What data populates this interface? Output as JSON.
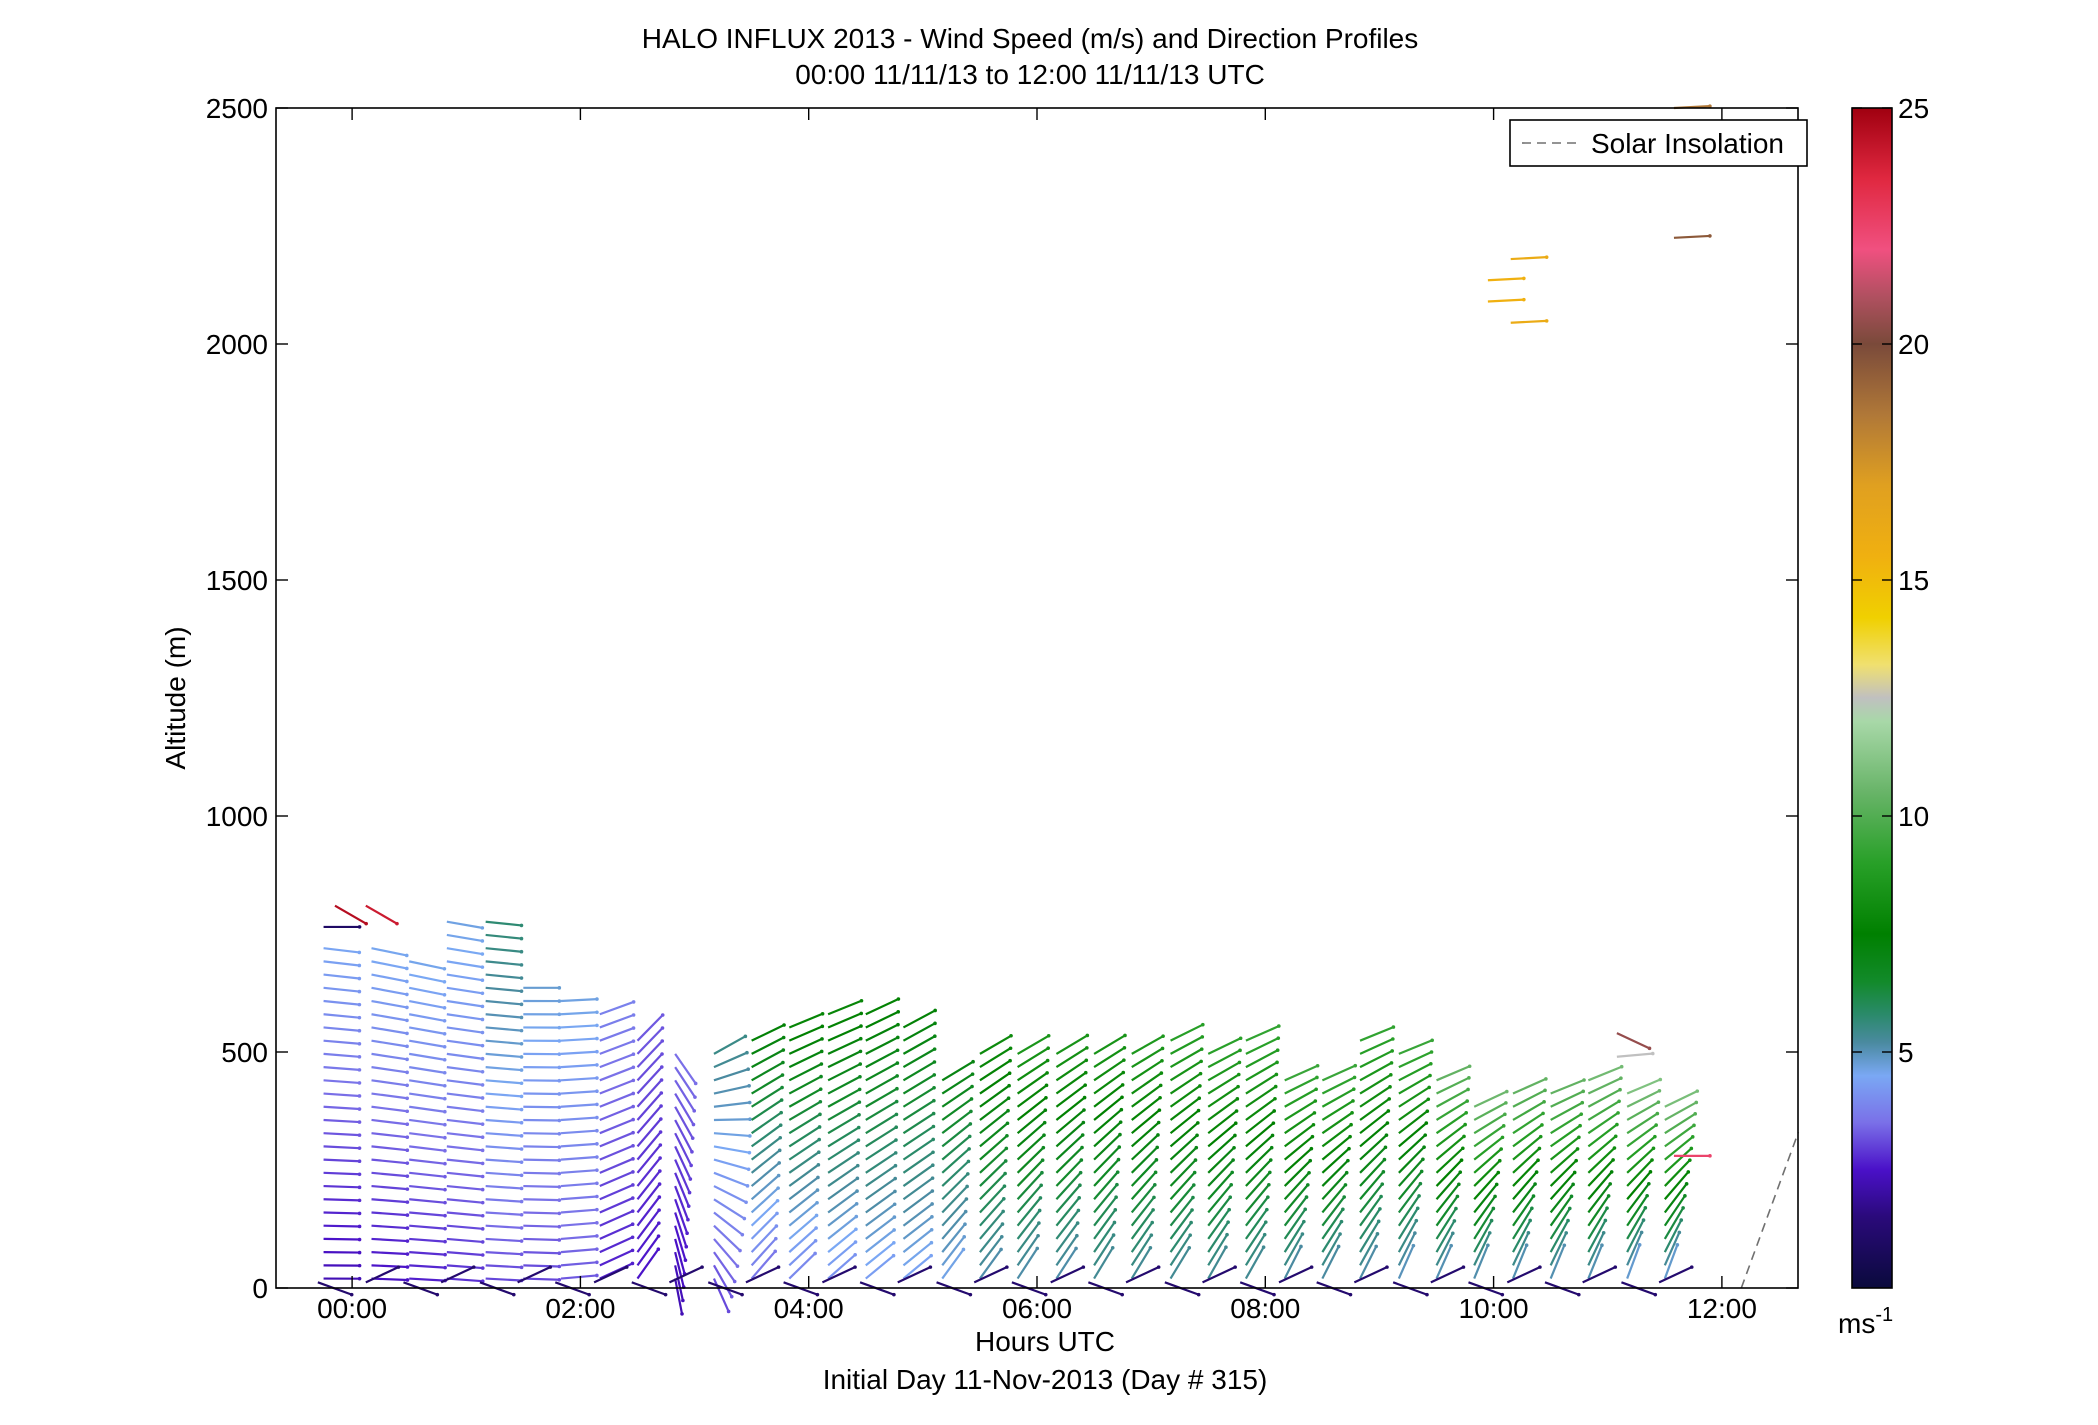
{
  "chart_data": {
    "type": "wind-barb-profile",
    "title": "HALO INFLUX 2013 - Wind Speed (m/s) and Direction Profiles",
    "subtitle": "00:00 11/11/13 to 12:00 11/11/13  UTC",
    "xlabel": "Hours UTC",
    "xlabel_sub": "Initial Day 11-Nov-2013 (Day # 315)",
    "ylabel": "Altitude (m)",
    "xlim": [
      -0.6667,
      12.6667
    ],
    "ylim": [
      0,
      2500
    ],
    "x_ticks": [
      {
        "value": 0,
        "label": "00:00"
      },
      {
        "value": 2,
        "label": "02:00"
      },
      {
        "value": 4,
        "label": "04:00"
      },
      {
        "value": 6,
        "label": "06:00"
      },
      {
        "value": 8,
        "label": "08:00"
      },
      {
        "value": 10,
        "label": "10:00"
      },
      {
        "value": 12,
        "label": "12:00"
      }
    ],
    "y_ticks": [
      {
        "value": 0,
        "label": "0"
      },
      {
        "value": 500,
        "label": "500"
      },
      {
        "value": 1000,
        "label": "1000"
      },
      {
        "value": 1500,
        "label": "1500"
      },
      {
        "value": 2000,
        "label": "2000"
      },
      {
        "value": 2500,
        "label": "2500"
      }
    ],
    "legend": {
      "label": "Solar Insolation",
      "placement": "top-right"
    },
    "solar_insolation": {
      "x": [
        12.17,
        12.67
      ],
      "y": [
        0,
        330
      ]
    },
    "colorbar": {
      "range": [
        0,
        25
      ],
      "ticks": [
        {
          "value": 5,
          "label": "5"
        },
        {
          "value": 10,
          "label": "10"
        },
        {
          "value": 15,
          "label": "15"
        },
        {
          "value": 20,
          "label": "20"
        },
        {
          "value": 25,
          "label": "25"
        }
      ],
      "unit_label": "ms",
      "unit_exp": "-1",
      "stops": [
        [
          0,
          "#0a0a3c"
        ],
        [
          1.5,
          "#2a0a7a"
        ],
        [
          2.5,
          "#4a10c8"
        ],
        [
          3.5,
          "#7a70e8"
        ],
        [
          4.5,
          "#7aa8f4"
        ],
        [
          5.2,
          "#4a8aa0"
        ],
        [
          5.8,
          "#2a8a6a"
        ],
        [
          6.5,
          "#128a2a"
        ],
        [
          7.5,
          "#008000"
        ],
        [
          9.0,
          "#28a028"
        ],
        [
          10.5,
          "#68b468"
        ],
        [
          12.0,
          "#a8d8a8"
        ],
        [
          12.5,
          "#c0c0c0"
        ],
        [
          13.2,
          "#f0e070"
        ],
        [
          14.2,
          "#f0d000"
        ],
        [
          15.5,
          "#f0b010"
        ],
        [
          17.0,
          "#e0a020"
        ],
        [
          18.5,
          "#b07838"
        ],
        [
          20.0,
          "#7a4a3a"
        ],
        [
          21.0,
          "#b05060"
        ],
        [
          22.0,
          "#f05080"
        ],
        [
          23.5,
          "#e02840"
        ],
        [
          25.0,
          "#a00010"
        ]
      ]
    },
    "arrows": {
      "columns": [
        {
          "t": -0.25,
          "speed_lo": 2.2,
          "speed_hi": 4.5,
          "dir_lo": 0,
          "dir_hi": -7,
          "top": 740
        },
        {
          "t": 0.17,
          "speed_lo": 2.4,
          "speed_hi": 4.6,
          "dir_lo": -2,
          "dir_hi": -12,
          "top": 740
        },
        {
          "t": 0.5,
          "speed_lo": 2.6,
          "speed_hi": 4.6,
          "dir_lo": -3,
          "dir_hi": -12,
          "top": 700
        },
        {
          "t": 0.83,
          "speed_lo": 2.8,
          "speed_hi": 4.7,
          "dir_lo": -4,
          "dir_hi": -10,
          "top": 800
        },
        {
          "t": 1.17,
          "speed_lo": 3.0,
          "speed_hi": 5.8,
          "dir_lo": -3,
          "dir_hi": -6,
          "top": 800
        },
        {
          "t": 1.5,
          "speed_lo": 3.0,
          "speed_hi": 4.8,
          "dir_lo": -2,
          "dir_hi": 0,
          "top": 640
        },
        {
          "t": 1.83,
          "speed_lo": 3.2,
          "speed_hi": 4.7,
          "dir_lo": 5,
          "dir_hi": 3,
          "top": 630
        },
        {
          "t": 2.17,
          "speed_lo": 2.6,
          "speed_hi": 3.8,
          "dir_lo": 25,
          "dir_hi": 20,
          "top": 580
        },
        {
          "t": 2.5,
          "speed_lo": 2.5,
          "speed_hi": 3.3,
          "dir_lo": 55,
          "dir_hi": 45,
          "top": 550
        },
        {
          "t": 2.83,
          "speed_lo": 2.2,
          "speed_hi": 3.5,
          "dir_lo": -80,
          "dir_hi": -55,
          "top": 500
        },
        {
          "t": 3.17,
          "speed_lo": 3.0,
          "speed_hi": 5.5,
          "dir_lo": -70,
          "dir_hi": 30,
          "top": 500
        },
        {
          "t": 3.5,
          "speed_lo": 3.5,
          "speed_hi": 7.5,
          "dir_lo": 50,
          "dir_hi": 25,
          "top": 540
        },
        {
          "t": 3.83,
          "speed_lo": 3.8,
          "speed_hi": 7.8,
          "dir_lo": 45,
          "dir_hi": 22,
          "top": 560
        },
        {
          "t": 4.17,
          "speed_lo": 4.0,
          "speed_hi": 7.8,
          "dir_lo": 42,
          "dir_hi": 22,
          "top": 580
        },
        {
          "t": 4.5,
          "speed_lo": 4.2,
          "speed_hi": 7.6,
          "dir_lo": 40,
          "dir_hi": 25,
          "top": 580
        },
        {
          "t": 4.83,
          "speed_lo": 4.3,
          "speed_hi": 7.4,
          "dir_lo": 40,
          "dir_hi": 28,
          "top": 560
        },
        {
          "t": 5.17,
          "speed_lo": 4.5,
          "speed_hi": 7.2,
          "dir_lo": 55,
          "dir_hi": 30,
          "top": 460
        },
        {
          "t": 5.5,
          "speed_lo": 5.0,
          "speed_hi": 8.0,
          "dir_lo": 55,
          "dir_hi": 30,
          "top": 500
        },
        {
          "t": 5.83,
          "speed_lo": 5.0,
          "speed_hi": 8.5,
          "dir_lo": 58,
          "dir_hi": 30,
          "top": 500
        },
        {
          "t": 6.17,
          "speed_lo": 5.0,
          "speed_hi": 8.5,
          "dir_lo": 58,
          "dir_hi": 30,
          "top": 510
        },
        {
          "t": 6.5,
          "speed_lo": 5.2,
          "speed_hi": 8.5,
          "dir_lo": 60,
          "dir_hi": 30,
          "top": 510
        },
        {
          "t": 6.83,
          "speed_lo": 5.2,
          "speed_hi": 8.8,
          "dir_lo": 60,
          "dir_hi": 28,
          "top": 520
        },
        {
          "t": 7.17,
          "speed_lo": 5.2,
          "speed_hi": 9.0,
          "dir_lo": 60,
          "dir_hi": 26,
          "top": 530
        },
        {
          "t": 7.5,
          "speed_lo": 5.2,
          "speed_hi": 9.2,
          "dir_lo": 62,
          "dir_hi": 24,
          "top": 520
        },
        {
          "t": 7.83,
          "speed_lo": 5.2,
          "speed_hi": 9.4,
          "dir_lo": 62,
          "dir_hi": 22,
          "top": 550
        },
        {
          "t": 8.17,
          "speed_lo": 5.0,
          "speed_hi": 9.6,
          "dir_lo": 65,
          "dir_hi": 22,
          "top": 460
        },
        {
          "t": 8.5,
          "speed_lo": 5.0,
          "speed_hi": 9.4,
          "dir_lo": 65,
          "dir_hi": 24,
          "top": 440
        },
        {
          "t": 8.83,
          "speed_lo": 5.0,
          "speed_hi": 9.4,
          "dir_lo": 65,
          "dir_hi": 20,
          "top": 550
        },
        {
          "t": 9.17,
          "speed_lo": 4.8,
          "speed_hi": 9.6,
          "dir_lo": 68,
          "dir_hi": 20,
          "top": 520
        },
        {
          "t": 9.5,
          "speed_lo": 4.8,
          "speed_hi": 10.5,
          "dir_lo": 68,
          "dir_hi": 22,
          "top": 450
        },
        {
          "t": 9.83,
          "speed_lo": 4.8,
          "speed_hi": 11.0,
          "dir_lo": 70,
          "dir_hi": 22,
          "top": 410
        },
        {
          "t": 10.17,
          "speed_lo": 4.8,
          "speed_hi": 10.6,
          "dir_lo": 70,
          "dir_hi": 22,
          "top": 430
        },
        {
          "t": 10.5,
          "speed_lo": 4.8,
          "speed_hi": 10.6,
          "dir_lo": 70,
          "dir_hi": 20,
          "top": 430
        },
        {
          "t": 10.83,
          "speed_lo": 4.8,
          "speed_hi": 11.0,
          "dir_lo": 70,
          "dir_hi": 20,
          "top": 460
        },
        {
          "t": 11.17,
          "speed_lo": 4.5,
          "speed_hi": 11.2,
          "dir_lo": 72,
          "dir_hi": 22,
          "top": 420
        },
        {
          "t": 11.5,
          "speed_lo": 4.5,
          "speed_hi": 11.0,
          "dir_lo": 72,
          "dir_hi": 25,
          "top": 390
        }
      ],
      "level_step": 28,
      "extra": [
        {
          "t": -0.15,
          "z": 810,
          "speed": 24.5,
          "dir": -30
        },
        {
          "t": 0.12,
          "z": 810,
          "speed": 24.0,
          "dir": -30
        },
        {
          "t": -0.25,
          "z": 765,
          "speed": 1.0,
          "dir": 0
        },
        {
          "t": 10.15,
          "z": 2180,
          "speed": 16.0,
          "dir": 3
        },
        {
          "t": 9.95,
          "z": 2135,
          "speed": 15.5,
          "dir": 3
        },
        {
          "t": 9.95,
          "z": 2090,
          "speed": 15.5,
          "dir": 3
        },
        {
          "t": 10.15,
          "z": 2045,
          "speed": 16.0,
          "dir": 3
        },
        {
          "t": 11.58,
          "z": 2225,
          "speed": 19.5,
          "dir": 3
        },
        {
          "t": 11.58,
          "z": 2500,
          "speed": 18.5,
          "dir": 3
        },
        {
          "t": 11.08,
          "z": 540,
          "speed": 20.5,
          "dir": -25
        },
        {
          "t": 11.08,
          "z": 490,
          "speed": 12.5,
          "dir": 5
        },
        {
          "t": 11.58,
          "z": 280,
          "speed": 22.5,
          "dir": 0
        }
      ]
    }
  }
}
